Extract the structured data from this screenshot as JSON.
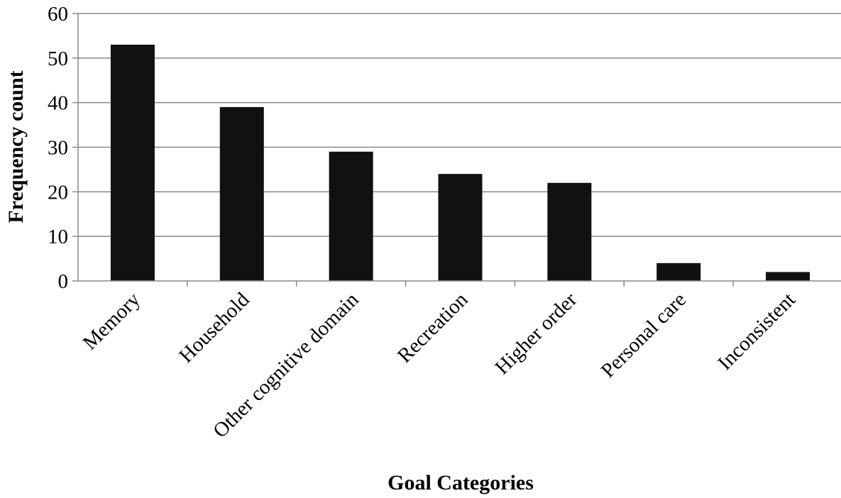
{
  "chart_data": {
    "type": "bar",
    "categories": [
      "Memory",
      "Household",
      "Other cognitive domain",
      "Recreation",
      "Higher order",
      "Personal care",
      "Inconsistent"
    ],
    "values": [
      53,
      39,
      29,
      24,
      22,
      4,
      2
    ],
    "xlabel": "Goal Categories",
    "ylabel": "Frequency count",
    "ylim": [
      0,
      60
    ],
    "yticks": [
      0,
      10,
      20,
      30,
      40,
      50,
      60
    ],
    "grid": true,
    "legend": "none",
    "colors": {
      "bar": "#111111",
      "grid": "#888888"
    }
  }
}
